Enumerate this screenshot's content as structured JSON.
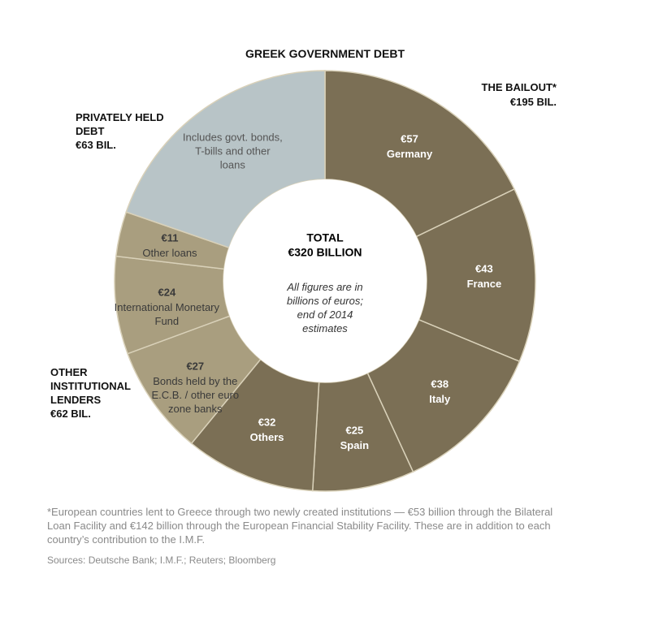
{
  "chart_data": {
    "type": "pie",
    "title": "GREEK GOVERNMENT DEBT",
    "categories": [
      "Germany",
      "France",
      "Italy",
      "Spain",
      "Others",
      "Bonds held by the E.C.B. / other euro zone banks",
      "International Monetary Fund",
      "Other loans",
      "Includes govt. bonds, T-bills and other loans"
    ],
    "values": [
      57,
      43,
      38,
      25,
      32,
      27,
      24,
      11,
      63
    ],
    "value_labels": [
      "€57",
      "€43",
      "€38",
      "€25",
      "€32",
      "€27",
      "€24",
      "€11",
      null
    ],
    "colors": [
      "#7b6f55",
      "#7b6f55",
      "#7b6f55",
      "#7b6f55",
      "#7b6f55",
      "#a99e7f",
      "#a99e7f",
      "#a99e7f",
      "#b8c4c7"
    ],
    "donut": true,
    "center": {
      "title": "TOTAL",
      "total": "€320 BILLION",
      "note": "All figures are in billions of euros; end of 2014 estimates"
    },
    "groups": [
      {
        "name": "THE BAILOUT*",
        "total": "€195 BIL."
      },
      {
        "name": "PRIVATELY HELD DEBT",
        "total": "€63 BIL."
      },
      {
        "name": "OTHER INSTITUTIONAL LENDERS",
        "total": "€62 BIL."
      }
    ],
    "footnote": "*European countries lent to Greece through two newly created institutions — €53 billion through the Bilateral Loan Facility and €142 billion through the European Financial Stability Facility. These are in addition to each country’s contribution to the I.M.F.",
    "sources": "Sources: Deutsche Bank; I.M.F.; Reuters; Bloomberg"
  }
}
